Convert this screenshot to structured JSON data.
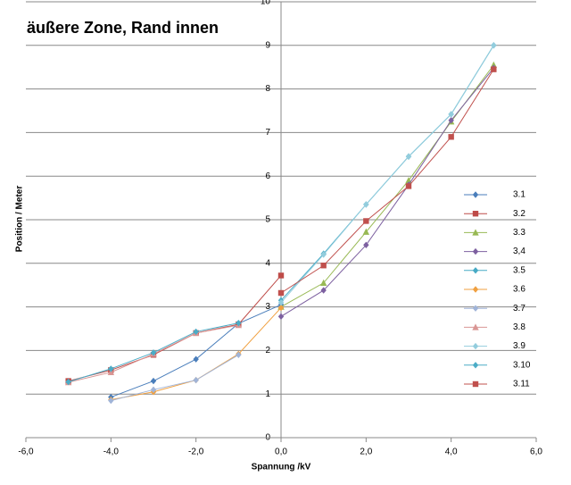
{
  "chart_data": {
    "type": "line",
    "title": "äußere Zone, Rand innen",
    "x_label": "Spannung /kV",
    "y_label": "Position / Meter",
    "xlim": [
      -6,
      6
    ],
    "xticks": [
      {
        "value": -6,
        "label": "-6,0"
      },
      {
        "value": -4,
        "label": "-4,0"
      },
      {
        "value": -2,
        "label": "-2,0"
      },
      {
        "value": 0,
        "label": "0,0"
      },
      {
        "value": 2,
        "label": "2,0"
      },
      {
        "value": 4,
        "label": "4,0"
      },
      {
        "value": 6,
        "label": "6,0"
      }
    ],
    "ylim": [
      0,
      10
    ],
    "yticks": [
      0,
      1,
      2,
      3,
      4,
      5,
      6,
      7,
      8,
      9,
      10
    ],
    "grid": true,
    "legend": "right",
    "series": [
      {
        "name": "3.1",
        "color": "#4a7ebb",
        "marker": "diamond",
        "x": [
          -4,
          -3,
          -2,
          -1,
          0
        ],
        "values": [
          0.93,
          1.3,
          1.8,
          2.62,
          3.05
        ]
      },
      {
        "name": "3.2",
        "color": "#be4b48",
        "marker": "square",
        "x": [
          -5,
          -4,
          -3,
          -2,
          -1,
          0
        ],
        "values": [
          1.3,
          1.55,
          1.9,
          2.4,
          2.6,
          3.72
        ]
      },
      {
        "name": "3.3",
        "color": "#98b954",
        "marker": "triangle",
        "x": [
          0,
          1,
          2,
          3,
          4,
          5
        ],
        "values": [
          3.0,
          3.55,
          4.72,
          5.9,
          7.25,
          8.55
        ]
      },
      {
        "name": "3,4",
        "color": "#7d60a0",
        "marker": "diamond",
        "x": [
          0,
          1,
          2,
          3,
          4,
          5
        ],
        "values": [
          2.78,
          3.38,
          4.42,
          5.8,
          7.28,
          8.48
        ]
      },
      {
        "name": "3.5",
        "color": "#46aac5",
        "marker": "diamond",
        "x": [
          0,
          1,
          2,
          3,
          4,
          5
        ],
        "values": [
          3.15,
          4.22,
          5.35,
          6.45,
          7.42,
          9.0
        ]
      },
      {
        "name": "3.6",
        "color": "#f0a040",
        "marker": "diamond",
        "x": [
          -4,
          -3,
          -2,
          -1,
          0
        ],
        "values": [
          0.87,
          1.05,
          1.32,
          1.92,
          2.98
        ]
      },
      {
        "name": "3.7",
        "color": "#a0b4d8",
        "marker": "diamond",
        "x": [
          -4,
          -3,
          -2,
          -1
        ],
        "values": [
          0.85,
          1.1,
          1.32,
          1.9
        ]
      },
      {
        "name": "3.8",
        "color": "#d99694",
        "marker": "triangle",
        "x": [
          -5,
          -4,
          -3,
          -2,
          -1
        ],
        "values": [
          1.27,
          1.5,
          1.92,
          2.4,
          2.58
        ]
      },
      {
        "name": "3.9",
        "color": "#93cddd",
        "marker": "diamond",
        "x": [
          0,
          1,
          2,
          3,
          4,
          5
        ],
        "values": [
          3.1,
          4.2,
          5.35,
          6.45,
          7.42,
          9.0
        ]
      },
      {
        "name": "3.10",
        "color": "#4bacc6",
        "marker": "diamond",
        "x": [
          -5,
          -4,
          -3,
          -2,
          -1
        ],
        "values": [
          1.28,
          1.58,
          1.95,
          2.43,
          2.63
        ]
      },
      {
        "name": "3.11",
        "color": "#c0504d",
        "marker": "square",
        "x": [
          0,
          1,
          2,
          3,
          4,
          5
        ],
        "values": [
          3.32,
          3.95,
          4.97,
          5.77,
          6.9,
          8.45
        ]
      }
    ]
  }
}
